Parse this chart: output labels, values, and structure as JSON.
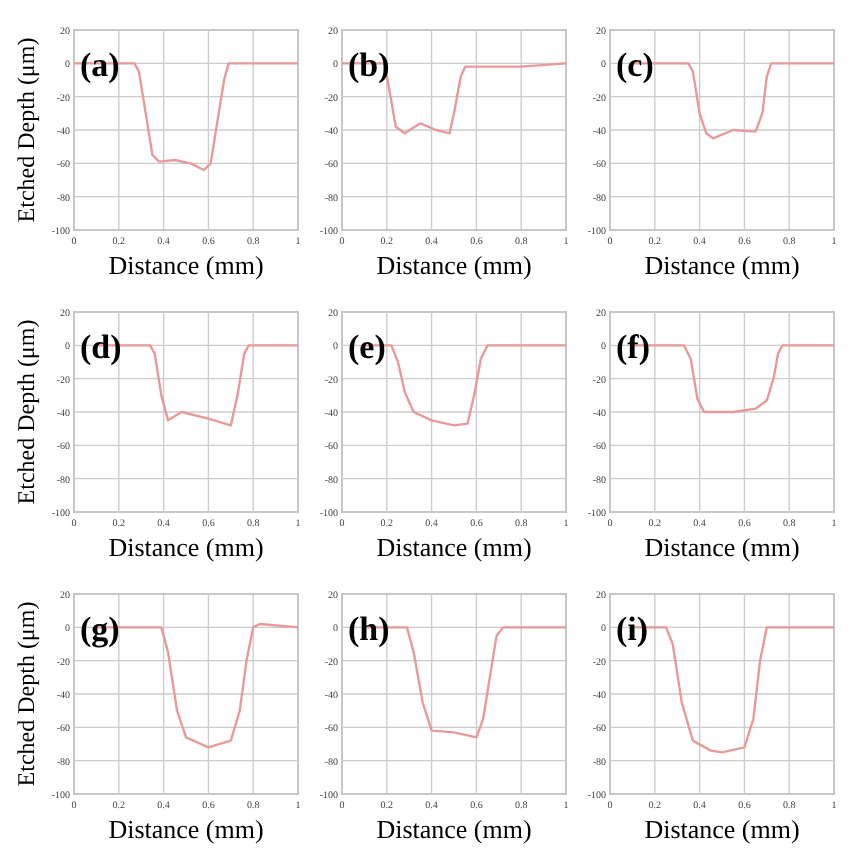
{
  "chart_data": [
    {
      "type": "line",
      "title": "(a)",
      "xlabel": "Distance (mm)",
      "ylabel": "Etched Depth (μm)",
      "xlim": [
        0,
        1
      ],
      "ylim": [
        -100,
        20
      ],
      "xticks": [
        0,
        0.2,
        0.4,
        0.6,
        0.8,
        1
      ],
      "yticks": [
        20,
        0,
        -20,
        -40,
        -60,
        -80,
        -100
      ],
      "grid": true,
      "series": [
        {
          "color": "#e89a9a",
          "x": [
            0,
            0.27,
            0.29,
            0.32,
            0.35,
            0.38,
            0.45,
            0.52,
            0.58,
            0.61,
            0.64,
            0.67,
            0.69,
            1
          ],
          "values": [
            0,
            0,
            -5,
            -30,
            -55,
            -59,
            -58,
            -60,
            -64,
            -60,
            -35,
            -10,
            0,
            0
          ]
        }
      ]
    },
    {
      "type": "line",
      "title": "(b)",
      "xlabel": "Distance (mm)",
      "xlim": [
        0,
        1
      ],
      "ylim": [
        -100,
        20
      ],
      "xticks": [
        0,
        0.2,
        0.4,
        0.6,
        0.8,
        1
      ],
      "yticks": [
        20,
        0,
        -20,
        -40,
        -60,
        -80,
        -100
      ],
      "grid": true,
      "series": [
        {
          "color": "#e89a9a",
          "x": [
            0,
            0.19,
            0.21,
            0.24,
            0.28,
            0.35,
            0.42,
            0.48,
            0.5,
            0.53,
            0.55,
            0.8,
            1
          ],
          "values": [
            0,
            0,
            -15,
            -38,
            -42,
            -36,
            -40,
            -42,
            -30,
            -8,
            -2,
            -2,
            0
          ]
        }
      ]
    },
    {
      "type": "line",
      "title": "(c)",
      "xlabel": "Distance (mm)",
      "xlim": [
        0,
        1
      ],
      "ylim": [
        -100,
        20
      ],
      "xticks": [
        0,
        0.2,
        0.4,
        0.6,
        0.8,
        1
      ],
      "yticks": [
        20,
        0,
        -20,
        -40,
        -60,
        -80,
        -100
      ],
      "grid": true,
      "series": [
        {
          "color": "#e89a9a",
          "x": [
            0.1,
            0.35,
            0.37,
            0.4,
            0.43,
            0.46,
            0.55,
            0.65,
            0.68,
            0.7,
            0.72,
            1
          ],
          "values": [
            0,
            0,
            -5,
            -30,
            -42,
            -45,
            -40,
            -41,
            -30,
            -8,
            0,
            0
          ]
        }
      ]
    },
    {
      "type": "line",
      "title": "(d)",
      "xlabel": "Distance (mm)",
      "ylabel": "Etched Depth (μm)",
      "xlim": [
        0,
        1
      ],
      "ylim": [
        -100,
        20
      ],
      "xticks": [
        0,
        0.2,
        0.4,
        0.6,
        0.8,
        1
      ],
      "yticks": [
        20,
        0,
        -20,
        -40,
        -60,
        -80,
        -100
      ],
      "grid": true,
      "series": [
        {
          "color": "#e89a9a",
          "x": [
            0.1,
            0.34,
            0.36,
            0.39,
            0.42,
            0.48,
            0.6,
            0.7,
            0.73,
            0.76,
            0.78,
            1
          ],
          "values": [
            0,
            0,
            -5,
            -30,
            -45,
            -40,
            -44,
            -48,
            -30,
            -5,
            0,
            0
          ]
        }
      ]
    },
    {
      "type": "line",
      "title": "(e)",
      "xlabel": "Distance (mm)",
      "xlim": [
        0,
        1
      ],
      "ylim": [
        -100,
        20
      ],
      "xticks": [
        0,
        0.2,
        0.4,
        0.6,
        0.8,
        1
      ],
      "yticks": [
        20,
        0,
        -20,
        -40,
        -60,
        -80,
        -100
      ],
      "grid": true,
      "series": [
        {
          "color": "#e89a9a",
          "x": [
            0.1,
            0.22,
            0.25,
            0.28,
            0.32,
            0.4,
            0.5,
            0.56,
            0.59,
            0.62,
            0.65,
            1
          ],
          "values": [
            0,
            0,
            -10,
            -28,
            -40,
            -45,
            -48,
            -47,
            -30,
            -8,
            0,
            0
          ]
        }
      ]
    },
    {
      "type": "line",
      "title": "(f)",
      "xlabel": "Distance (mm)",
      "xlim": [
        0,
        1
      ],
      "ylim": [
        -100,
        20
      ],
      "xticks": [
        0,
        0.2,
        0.4,
        0.6,
        0.8,
        1
      ],
      "yticks": [
        20,
        0,
        -20,
        -40,
        -60,
        -80,
        -100
      ],
      "grid": true,
      "series": [
        {
          "color": "#e89a9a",
          "x": [
            0.1,
            0.33,
            0.36,
            0.39,
            0.42,
            0.55,
            0.65,
            0.7,
            0.73,
            0.75,
            0.77,
            1
          ],
          "values": [
            0,
            0,
            -8,
            -32,
            -40,
            -40,
            -38,
            -33,
            -20,
            -5,
            0,
            0
          ]
        }
      ]
    },
    {
      "type": "line",
      "title": "(g)",
      "xlabel": "Distance (mm)",
      "ylabel": "Etched Depth (μm)",
      "xlim": [
        0,
        1
      ],
      "ylim": [
        -100,
        20
      ],
      "xticks": [
        0,
        0.2,
        0.4,
        0.6,
        0.8,
        1
      ],
      "yticks": [
        20,
        0,
        -20,
        -40,
        -60,
        -80,
        -100
      ],
      "grid": true,
      "series": [
        {
          "color": "#e89a9a",
          "x": [
            0.1,
            0.39,
            0.42,
            0.46,
            0.5,
            0.6,
            0.7,
            0.74,
            0.77,
            0.8,
            0.83,
            1
          ],
          "values": [
            0,
            0,
            -15,
            -50,
            -66,
            -72,
            -68,
            -50,
            -20,
            0,
            2,
            0
          ]
        }
      ]
    },
    {
      "type": "line",
      "title": "(h)",
      "xlabel": "Distance (mm)",
      "xlim": [
        0,
        1
      ],
      "ylim": [
        -100,
        20
      ],
      "xticks": [
        0,
        0.2,
        0.4,
        0.6,
        0.8,
        1
      ],
      "yticks": [
        20,
        0,
        -20,
        -40,
        -60,
        -80,
        -100
      ],
      "grid": true,
      "series": [
        {
          "color": "#e89a9a",
          "x": [
            0.1,
            0.29,
            0.32,
            0.36,
            0.4,
            0.5,
            0.6,
            0.63,
            0.66,
            0.69,
            0.72,
            1
          ],
          "values": [
            0,
            0,
            -15,
            -45,
            -62,
            -63,
            -66,
            -55,
            -30,
            -5,
            0,
            0
          ]
        }
      ]
    },
    {
      "type": "line",
      "title": "(i)",
      "xlabel": "Distance (mm)",
      "xlim": [
        0,
        1
      ],
      "ylim": [
        -100,
        20
      ],
      "xticks": [
        0,
        0.2,
        0.4,
        0.6,
        0.8,
        1
      ],
      "yticks": [
        20,
        0,
        -20,
        -40,
        -60,
        -80,
        -100
      ],
      "grid": true,
      "series": [
        {
          "color": "#e89a9a",
          "x": [
            0.1,
            0.25,
            0.28,
            0.32,
            0.37,
            0.45,
            0.5,
            0.6,
            0.64,
            0.67,
            0.7,
            1
          ],
          "values": [
            0,
            0,
            -10,
            -45,
            -68,
            -74,
            -75,
            -72,
            -55,
            -20,
            0,
            0
          ]
        }
      ]
    }
  ]
}
